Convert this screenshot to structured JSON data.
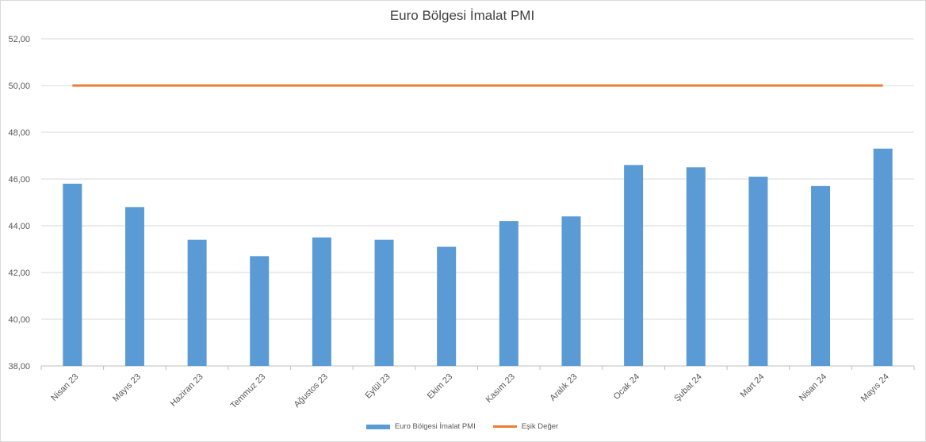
{
  "chart_data": {
    "type": "bar",
    "title": "Euro Bölgesi İmalat PMI",
    "categories": [
      "Nisan 23",
      "Mayıs 23",
      "Haziran 23",
      "Temmuz 23",
      "Ağustos 23",
      "Eylül 23",
      "Ekim 23",
      "Kasım 23",
      "Aralık 23",
      "Ocak 24",
      "Şubat 24",
      "Mart 24",
      "Nisan 24",
      "Mayıs 24"
    ],
    "series": [
      {
        "name": "Euro Bölgesi İmalat PMI",
        "type": "bar",
        "color": "#5b9bd5",
        "values": [
          45.8,
          44.8,
          43.4,
          42.7,
          43.5,
          43.4,
          43.1,
          44.2,
          44.4,
          46.6,
          46.5,
          46.1,
          45.7,
          47.3
        ]
      },
      {
        "name": "Eşik Değer",
        "type": "line",
        "color": "#ed7d31",
        "values": [
          50,
          50,
          50,
          50,
          50,
          50,
          50,
          50,
          50,
          50,
          50,
          50,
          50,
          50
        ]
      }
    ],
    "ylim": [
      38,
      52
    ],
    "yticks": [
      "38,00",
      "40,00",
      "42,00",
      "44,00",
      "46,00",
      "48,00",
      "50,00",
      "52,00"
    ],
    "xlabel": "",
    "ylabel": "",
    "grid": true,
    "legend_position": "bottom"
  }
}
